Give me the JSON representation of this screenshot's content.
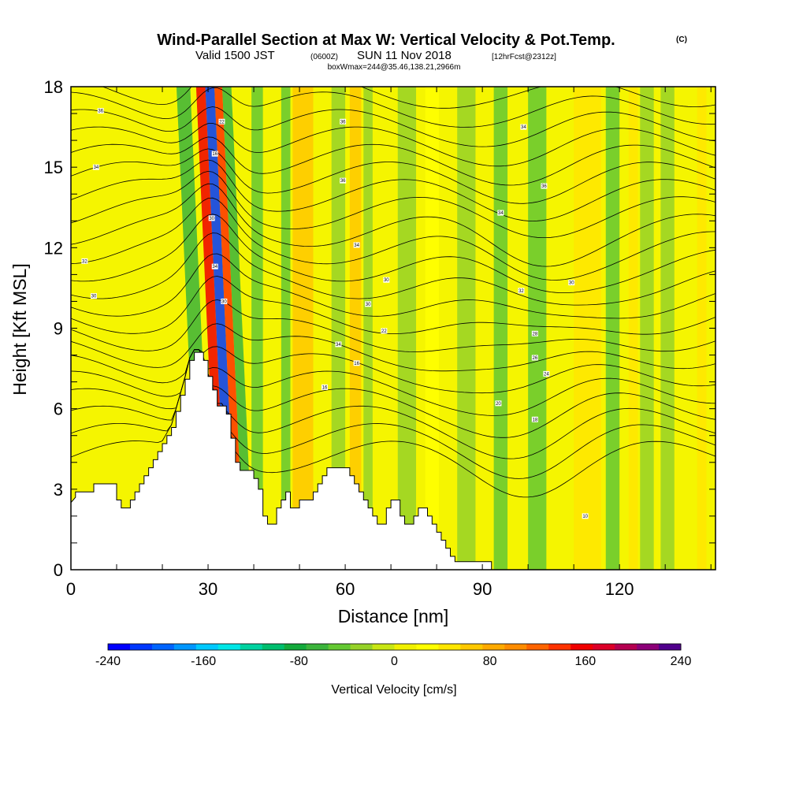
{
  "header": {
    "title": "Wind-Parallel Section at Max W: Vertical Velocity & Pot.Temp.",
    "title_tag": "(C)",
    "valid_prefix": "Valid 1500 JST",
    "valid_utc": "(0600Z)",
    "valid_date": "SUN 11 Nov 2018",
    "forecast": "[12hrFcst@2312z]",
    "box_info": "boxWmax=244@35.46,138.21,2966m"
  },
  "chart_data": {
    "type": "heatmap",
    "xlabel": "Distance [nm]",
    "ylabel": "Height [Kft MSL]",
    "xlim": [
      0,
      141
    ],
    "ylim": [
      0,
      18
    ],
    "x_ticks": [
      "0",
      "30",
      "60",
      "90",
      "120"
    ],
    "y_ticks": [
      "0",
      "3",
      "6",
      "9",
      "12",
      "15",
      "18"
    ],
    "x_tick_values": [
      0,
      30,
      60,
      90,
      120
    ],
    "y_tick_values": [
      0,
      3,
      6,
      9,
      12,
      15,
      18
    ],
    "colorbar": {
      "label": "Vertical Velocity [cm/s]",
      "range": [
        -240,
        240
      ],
      "tick_labels": [
        "-240",
        "-160",
        "-80",
        "0",
        "80",
        "160",
        "240"
      ],
      "tick_values": [
        -240,
        -160,
        -80,
        0,
        80,
        160,
        240
      ],
      "colors": [
        "#0000ff",
        "#0037ff",
        "#0064ff",
        "#0096ff",
        "#00c8ff",
        "#00e6e6",
        "#00d2a0",
        "#00be6e",
        "#14aa3c",
        "#3cb43c",
        "#64c832",
        "#96d228",
        "#c8e614",
        "#f0f000",
        "#ffff00",
        "#ffe600",
        "#ffc800",
        "#ffaa00",
        "#ff8c00",
        "#ff6400",
        "#ff3200",
        "#f00000",
        "#dc0028",
        "#b40050",
        "#8c0078",
        "#50008c"
      ]
    },
    "terrain_kft": [
      [
        0,
        2.5
      ],
      [
        1,
        2.7
      ],
      [
        1,
        2.9
      ],
      [
        5,
        2.9
      ],
      [
        5,
        3.2
      ],
      [
        10,
        3.2
      ],
      [
        10,
        2.6
      ],
      [
        11,
        2.6
      ],
      [
        11,
        2.3
      ],
      [
        13,
        2.3
      ],
      [
        13,
        2.6
      ],
      [
        14,
        2.6
      ],
      [
        14,
        2.9
      ],
      [
        15,
        2.9
      ],
      [
        15,
        3.2
      ],
      [
        16,
        3.2
      ],
      [
        16,
        3.5
      ],
      [
        17,
        3.5
      ],
      [
        17,
        3.8
      ],
      [
        18,
        3.8
      ],
      [
        18,
        4.1
      ],
      [
        19,
        4.1
      ],
      [
        19,
        4.4
      ],
      [
        20,
        4.4
      ],
      [
        20,
        4.7
      ],
      [
        21,
        4.7
      ],
      [
        21,
        5.0
      ],
      [
        22,
        5.0
      ],
      [
        22,
        5.3
      ],
      [
        23,
        5.3
      ],
      [
        23,
        5.9
      ],
      [
        24,
        5.9
      ],
      [
        24,
        6.5
      ],
      [
        25,
        6.5
      ],
      [
        25,
        7.1
      ],
      [
        26,
        7.1
      ],
      [
        26,
        7.8
      ],
      [
        27,
        7.8
      ],
      [
        27,
        8.1
      ],
      [
        29,
        8.1
      ],
      [
        29,
        7.8
      ],
      [
        30,
        7.8
      ],
      [
        30,
        7.2
      ],
      [
        31,
        7.2
      ],
      [
        31,
        6.7
      ],
      [
        32,
        6.7
      ],
      [
        32,
        6.1
      ],
      [
        34,
        6.1
      ],
      [
        34,
        5.8
      ],
      [
        35,
        5.8
      ],
      [
        35,
        4.9
      ],
      [
        36,
        4.9
      ],
      [
        36,
        4.0
      ],
      [
        37,
        4.0
      ],
      [
        37,
        3.7
      ],
      [
        40,
        3.7
      ],
      [
        40,
        3.4
      ],
      [
        41,
        3.4
      ],
      [
        41,
        3.0
      ],
      [
        42,
        3.0
      ],
      [
        42,
        2.0
      ],
      [
        43,
        2.0
      ],
      [
        43,
        1.7
      ],
      [
        45,
        1.7
      ],
      [
        45,
        2.3
      ],
      [
        46,
        2.3
      ],
      [
        46,
        2.6
      ],
      [
        47,
        2.6
      ],
      [
        47,
        2.9
      ],
      [
        48,
        2.9
      ],
      [
        48,
        2.3
      ],
      [
        50,
        2.3
      ],
      [
        50,
        2.6
      ],
      [
        53,
        2.6
      ],
      [
        53,
        2.9
      ],
      [
        54,
        2.9
      ],
      [
        54,
        3.2
      ],
      [
        55,
        3.2
      ],
      [
        55,
        3.5
      ],
      [
        56,
        3.5
      ],
      [
        56,
        3.8
      ],
      [
        61,
        3.8
      ],
      [
        61,
        3.5
      ],
      [
        62,
        3.5
      ],
      [
        62,
        3.2
      ],
      [
        63,
        3.2
      ],
      [
        63,
        2.9
      ],
      [
        64,
        2.9
      ],
      [
        64,
        2.6
      ],
      [
        65,
        2.6
      ],
      [
        65,
        2.3
      ],
      [
        66,
        2.3
      ],
      [
        66,
        2.0
      ],
      [
        67,
        2.0
      ],
      [
        67,
        1.7
      ],
      [
        69,
        1.7
      ],
      [
        69,
        2.3
      ],
      [
        70,
        2.3
      ],
      [
        70,
        2.6
      ],
      [
        72,
        2.6
      ],
      [
        72,
        2.0
      ],
      [
        73,
        2.0
      ],
      [
        73,
        1.7
      ],
      [
        75,
        1.7
      ],
      [
        75,
        2.0
      ],
      [
        76,
        2.0
      ],
      [
        76,
        2.3
      ],
      [
        78,
        2.3
      ],
      [
        78,
        2.0
      ],
      [
        79,
        2.0
      ],
      [
        79,
        1.7
      ],
      [
        80,
        1.7
      ],
      [
        80,
        1.4
      ],
      [
        81,
        1.4
      ],
      [
        81,
        1.1
      ],
      [
        82,
        1.1
      ],
      [
        82,
        0.8
      ],
      [
        83,
        0.8
      ],
      [
        83,
        0.5
      ],
      [
        84,
        0.5
      ],
      [
        84,
        0.3
      ],
      [
        92,
        0.3
      ],
      [
        92,
        0.0
      ],
      [
        141,
        0.0
      ]
    ],
    "velocity_bands": [
      {
        "x0": 25.5,
        "x1": 28.5,
        "w": -70
      },
      {
        "x0": 29.8,
        "x1": 31.8,
        "w": 160
      },
      {
        "x0": 31.8,
        "x1": 33.8,
        "w": -210
      },
      {
        "x0": 33.8,
        "x1": 35.5,
        "w": 140
      },
      {
        "x0": 35.5,
        "x1": 37.5,
        "w": -60
      },
      {
        "x0": 39.5,
        "x1": 42.0,
        "w": -40
      },
      {
        "x0": 46.0,
        "x1": 48.0,
        "w": -50
      },
      {
        "x0": 48.5,
        "x1": 53.0,
        "w": 60
      },
      {
        "x0": 57.0,
        "x1": 60.0,
        "w": -35
      },
      {
        "x0": 61.0,
        "x1": 63.5,
        "w": 70
      },
      {
        "x0": 64.0,
        "x1": 66.0,
        "w": -30
      },
      {
        "x0": 71.5,
        "x1": 75.5,
        "w": -35
      },
      {
        "x0": 77.5,
        "x1": 80.5,
        "w": 35
      },
      {
        "x0": 84.5,
        "x1": 88.5,
        "w": -25
      },
      {
        "x0": 92.5,
        "x1": 95.5,
        "w": -40
      },
      {
        "x0": 100.0,
        "x1": 104.0,
        "w": -55
      },
      {
        "x0": 110.0,
        "x1": 116.0,
        "w": 55
      },
      {
        "x0": 117.0,
        "x1": 120.0,
        "w": -45
      },
      {
        "x0": 122.0,
        "x1": 124.0,
        "w": 40
      },
      {
        "x0": 124.5,
        "x1": 127.5,
        "w": -35
      },
      {
        "x0": 129.0,
        "x1": 132.0,
        "w": -25
      },
      {
        "x0": 137.0,
        "x1": 139.0,
        "w": 50
      }
    ],
    "contour_labels": [
      {
        "text": "36",
        "x": 6.5,
        "y": 17.1
      },
      {
        "text": "34",
        "x": 5.5,
        "y": 15.0
      },
      {
        "text": "32",
        "x": 3.0,
        "y": 11.5
      },
      {
        "text": "30",
        "x": 5.0,
        "y": 10.2
      },
      {
        "text": "22",
        "x": 33.0,
        "y": 16.7
      },
      {
        "text": "16",
        "x": 31.5,
        "y": 15.5
      },
      {
        "text": "30",
        "x": 30.8,
        "y": 13.1
      },
      {
        "text": "34",
        "x": 31.5,
        "y": 11.3
      },
      {
        "text": "30",
        "x": 33.5,
        "y": 10.0
      },
      {
        "text": "36",
        "x": 59.5,
        "y": 16.7
      },
      {
        "text": "36",
        "x": 59.5,
        "y": 14.5
      },
      {
        "text": "34",
        "x": 62.5,
        "y": 12.1
      },
      {
        "text": "30",
        "x": 69.0,
        "y": 10.8
      },
      {
        "text": "30",
        "x": 65.0,
        "y": 9.9
      },
      {
        "text": "22",
        "x": 68.5,
        "y": 8.9
      },
      {
        "text": "34",
        "x": 58.5,
        "y": 8.4
      },
      {
        "text": "16",
        "x": 62.5,
        "y": 7.7
      },
      {
        "text": "16",
        "x": 55.5,
        "y": 6.8
      },
      {
        "text": "34",
        "x": 99.0,
        "y": 16.5
      },
      {
        "text": "36",
        "x": 103.5,
        "y": 14.3
      },
      {
        "text": "34",
        "x": 94.0,
        "y": 13.3
      },
      {
        "text": "32",
        "x": 98.5,
        "y": 10.4
      },
      {
        "text": "30",
        "x": 109.5,
        "y": 10.7
      },
      {
        "text": "28",
        "x": 101.5,
        "y": 8.8
      },
      {
        "text": "26",
        "x": 101.5,
        "y": 7.9
      },
      {
        "text": "24",
        "x": 104.0,
        "y": 7.3
      },
      {
        "text": "20",
        "x": 93.5,
        "y": 6.2
      },
      {
        "text": "18",
        "x": 101.5,
        "y": 5.6
      },
      {
        "text": "10",
        "x": 112.5,
        "y": 2.0
      }
    ]
  }
}
